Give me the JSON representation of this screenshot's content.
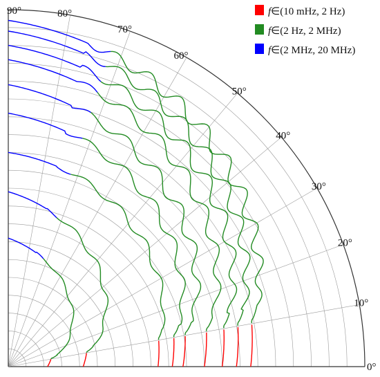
{
  "chart_data": {
    "type": "line",
    "subtype": "polar-quarter",
    "theta_range_deg": [
      0,
      90
    ],
    "angle_ticks": [
      "0°",
      "10°",
      "20°",
      "30°",
      "40°",
      "50°",
      "60°",
      "70°",
      "80°",
      "90°"
    ],
    "grid": true,
    "legend_position": "top-right",
    "series": [
      {
        "name": "(10 mHz, 2 Hz)",
        "color": "#ff0000"
      },
      {
        "name": "(2 Hz, 2 MHz)",
        "color": "#228b22"
      },
      {
        "name": "(2 MHz, 20 MHz)",
        "color": "#0000ff"
      }
    ],
    "legend_prefix": "f",
    "legend_symbol": "∈",
    "curves": [
      {
        "r0": 0.11,
        "r_mid": 0.36,
        "amp": 0.005,
        "nwig": 5
      },
      {
        "r0": 0.21,
        "r_mid": 0.49,
        "amp": 0.008,
        "nwig": 6
      },
      {
        "r0": 0.42,
        "r_mid": 0.6,
        "amp": 0.01,
        "nwig": 7
      },
      {
        "r0": 0.46,
        "r_mid": 0.71,
        "amp": 0.013,
        "nwig": 8
      },
      {
        "r0": 0.49,
        "r_mid": 0.79,
        "amp": 0.016,
        "nwig": 9
      },
      {
        "r0": 0.55,
        "r_mid": 0.86,
        "amp": 0.016,
        "nwig": 10
      },
      {
        "r0": 0.6,
        "r_mid": 0.9,
        "amp": 0.018,
        "nwig": 11
      },
      {
        "r0": 0.64,
        "r_mid": 0.94,
        "amp": 0.018,
        "nwig": 12
      },
      {
        "r0": 0.68,
        "r_mid": 0.97,
        "amp": 0.02,
        "nwig": 13
      }
    ]
  }
}
